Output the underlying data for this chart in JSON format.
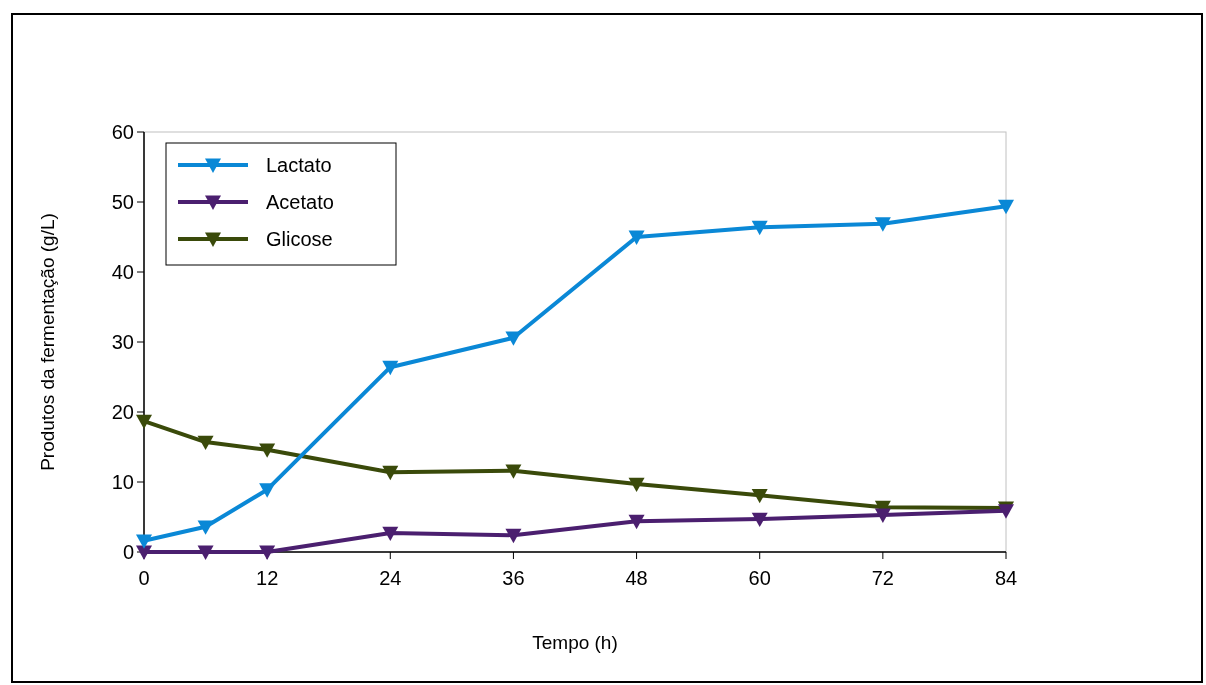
{
  "chart_data": {
    "type": "line",
    "xlabel": "Tempo (h)",
    "ylabel": "Produtos da fermentação (g/L)",
    "x": [
      0,
      6,
      12,
      24,
      36,
      48,
      60,
      72,
      84
    ],
    "series": [
      {
        "name": "Lactato",
        "color": "#0a88d6",
        "marker": "triangle",
        "values": [
          1.6,
          3.6,
          8.9,
          26.4,
          30.6,
          45,
          46.4,
          46.9,
          49.4
        ]
      },
      {
        "name": "Acetato",
        "color": "#4b1f6f",
        "marker": "triangle",
        "values": [
          0,
          0,
          0,
          2.7,
          2.4,
          4.4,
          4.7,
          5.3,
          5.9
        ]
      },
      {
        "name": "Glicose",
        "color": "#3a4a0a",
        "marker": "triangle",
        "values": [
          18.7,
          15.7,
          14.6,
          11.4,
          11.6,
          9.7,
          8.1,
          6.4,
          6.3
        ]
      }
    ],
    "xlim": [
      0,
      84
    ],
    "xticks": [
      0,
      12,
      24,
      36,
      48,
      60,
      72,
      84
    ],
    "ylim": [
      0,
      60
    ],
    "yticks": [
      0,
      10,
      20,
      30,
      40,
      50,
      60
    ],
    "grid": false,
    "legend": "top left",
    "line_style": "solid"
  }
}
